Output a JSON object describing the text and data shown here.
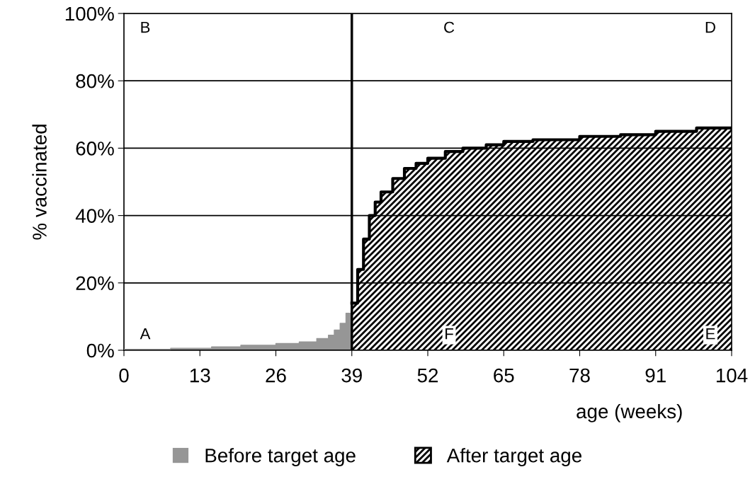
{
  "chart_data": {
    "type": "area",
    "xlabel": "age (weeks)",
    "ylabel": "% vaccinated",
    "xlim": [
      0,
      104
    ],
    "xticks": [
      0,
      13,
      26,
      39,
      52,
      65,
      78,
      91,
      104
    ],
    "ylim": [
      0,
      100
    ],
    "yticks": [
      {
        "value": 0,
        "label": "0%"
      },
      {
        "value": 20,
        "label": "20%"
      },
      {
        "value": 40,
        "label": "40%"
      },
      {
        "value": 60,
        "label": "60%"
      },
      {
        "value": 80,
        "label": "80%"
      },
      {
        "value": 100,
        "label": "100%"
      }
    ],
    "grid": "y",
    "legend": "bottom",
    "series": [
      {
        "name": "Before target age",
        "color": "#969696",
        "x": [
          0,
          8,
          8,
          15,
          15,
          20,
          20,
          26,
          26,
          30,
          30,
          33,
          33,
          35,
          35,
          36,
          36,
          37,
          37,
          38,
          38,
          39
        ],
        "values": [
          0.3,
          0.3,
          0.6,
          0.6,
          1,
          1,
          1.5,
          1.5,
          2,
          2,
          2.5,
          2.5,
          3.5,
          3.5,
          4.5,
          4.5,
          6,
          6,
          8,
          8,
          11,
          11
        ]
      },
      {
        "name": "After target age",
        "color": "#000000",
        "x": [
          39,
          40,
          40,
          41,
          41,
          42,
          42,
          43,
          43,
          44,
          44,
          46,
          46,
          48,
          48,
          50,
          50,
          52,
          52,
          55,
          55,
          58,
          58,
          62,
          62,
          65,
          65,
          70,
          70,
          78,
          78,
          85,
          85,
          91,
          91,
          98,
          98,
          104
        ],
        "values": [
          14,
          14,
          24,
          24,
          33,
          33,
          40,
          40,
          44,
          44,
          47,
          47,
          51,
          51,
          54,
          54,
          55.5,
          55.5,
          57,
          57,
          59,
          59,
          60,
          60,
          61,
          61,
          62,
          62,
          62.5,
          62.5,
          63.5,
          63.5,
          64,
          64,
          65,
          65,
          66,
          66
        ]
      }
    ],
    "ref_lines": [
      {
        "axis": "x",
        "value": 39,
        "color": "#000000"
      }
    ],
    "annotations": [
      "A",
      "B",
      "C",
      "D",
      "E",
      "F"
    ]
  }
}
